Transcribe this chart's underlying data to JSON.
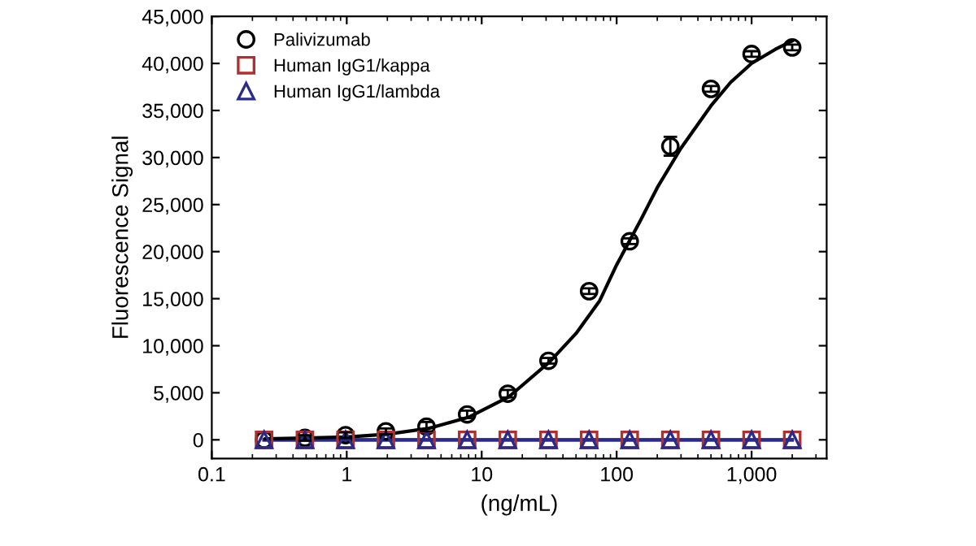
{
  "chart_data": {
    "type": "scatter",
    "xlabel": "(ng/mL)",
    "ylabel": "Fluorescence Signal",
    "log": "x",
    "xlim": [
      0.1,
      3600
    ],
    "xticks": [
      0.1,
      1,
      10,
      100,
      {
        "value": 1000,
        "label": "1,000"
      }
    ],
    "ylim": [
      -2000,
      45000
    ],
    "yticks": [
      {
        "value": 0,
        "label": "0"
      },
      {
        "value": 5000,
        "label": "5,000"
      },
      {
        "value": 10000,
        "label": "10,000"
      },
      {
        "value": 15000,
        "label": "15,000"
      },
      {
        "value": 20000,
        "label": "20,000"
      },
      {
        "value": 25000,
        "label": "25,000"
      },
      {
        "value": 30000,
        "label": "30,000"
      },
      {
        "value": 35000,
        "label": "35,000"
      },
      {
        "value": 40000,
        "label": "40,000"
      },
      {
        "value": 45000,
        "label": "45,000"
      }
    ],
    "grid": false,
    "legend": "top left",
    "x": [
      0.244,
      0.49,
      0.98,
      1.95,
      3.9,
      7.8,
      15.6,
      31.25,
      62.5,
      125,
      250,
      500,
      1000,
      2000
    ],
    "series": [
      {
        "name": "Palivizumab",
        "color": "#000000",
        "marker": "circle",
        "values": [
          0,
          200,
          500,
          900,
          1400,
          2700,
          4900,
          8400,
          15800,
          21100,
          31200,
          37300,
          41000,
          41700
        ],
        "errors": [
          null,
          300,
          300,
          300,
          500,
          400,
          400,
          300,
          300,
          300,
          1000,
          300,
          300,
          300
        ]
      },
      {
        "name": "Human IgG1/kappa",
        "type": "line",
        "color": "#b03030",
        "marker": "square",
        "values": [
          0,
          0,
          0,
          0,
          0,
          0,
          0,
          0,
          0,
          0,
          0,
          0,
          0,
          0
        ]
      },
      {
        "name": "Human IgG1/lambda",
        "type": "line",
        "color": "#2a2a8c",
        "marker": "triangle",
        "values": [
          0,
          0,
          0,
          0,
          0,
          0,
          0,
          0,
          0,
          0,
          0,
          0,
          0,
          0
        ]
      },
      {
        "type": "line",
        "color": "#000000",
        "marker": "none",
        "x": [
          0.25,
          0.5,
          1,
          2,
          4,
          8,
          16,
          32,
          50,
          75,
          100,
          150,
          200,
          300,
          500,
          700,
          1000,
          1500,
          2000
        ],
        "values": [
          100,
          200,
          300,
          600,
          1200,
          2400,
          4600,
          8300,
          11300,
          14800,
          18600,
          23300,
          26800,
          31000,
          35500,
          38000,
          40000,
          41500,
          42400
        ]
      }
    ]
  }
}
